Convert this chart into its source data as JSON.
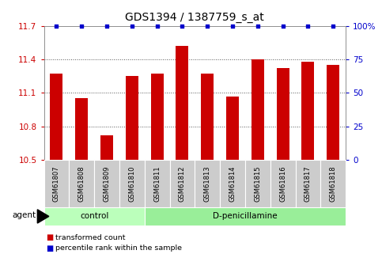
{
  "title": "GDS1394 / 1387759_s_at",
  "categories": [
    "GSM61807",
    "GSM61808",
    "GSM61809",
    "GSM61810",
    "GSM61811",
    "GSM61812",
    "GSM61813",
    "GSM61814",
    "GSM61815",
    "GSM61816",
    "GSM61817",
    "GSM61818"
  ],
  "bar_values": [
    11.27,
    11.05,
    10.72,
    11.25,
    11.27,
    11.52,
    11.27,
    11.07,
    11.4,
    11.32,
    11.38,
    11.35
  ],
  "percentile_values": [
    100,
    100,
    100,
    100,
    100,
    100,
    100,
    100,
    100,
    100,
    100,
    100
  ],
  "bar_color": "#cc0000",
  "percentile_color": "#0000cc",
  "ylim_left": [
    10.5,
    11.7
  ],
  "ylim_right": [
    0,
    100
  ],
  "yticks_left": [
    10.5,
    10.8,
    11.1,
    11.4,
    11.7
  ],
  "yticks_right": [
    0,
    25,
    50,
    75,
    100
  ],
  "ytick_labels_left": [
    "10.5",
    "10.8",
    "11.1",
    "11.4",
    "11.7"
  ],
  "ytick_labels_right": [
    "0",
    "25",
    "50",
    "75",
    "100%"
  ],
  "groups": [
    {
      "label": "control",
      "start": 0,
      "end": 3,
      "color": "#bbffbb"
    },
    {
      "label": "D-penicillamine",
      "start": 4,
      "end": 11,
      "color": "#99ee99"
    }
  ],
  "agent_label": "agent",
  "legend_items": [
    {
      "color": "#cc0000",
      "label": "transformed count"
    },
    {
      "color": "#0000cc",
      "label": "percentile rank within the sample"
    }
  ],
  "background_color": "#ffffff",
  "plot_bg_color": "#ffffff",
  "grid_color": "#555555",
  "sample_box_color": "#cccccc",
  "title_fontsize": 10,
  "tick_fontsize": 7.5,
  "bar_width": 0.5
}
